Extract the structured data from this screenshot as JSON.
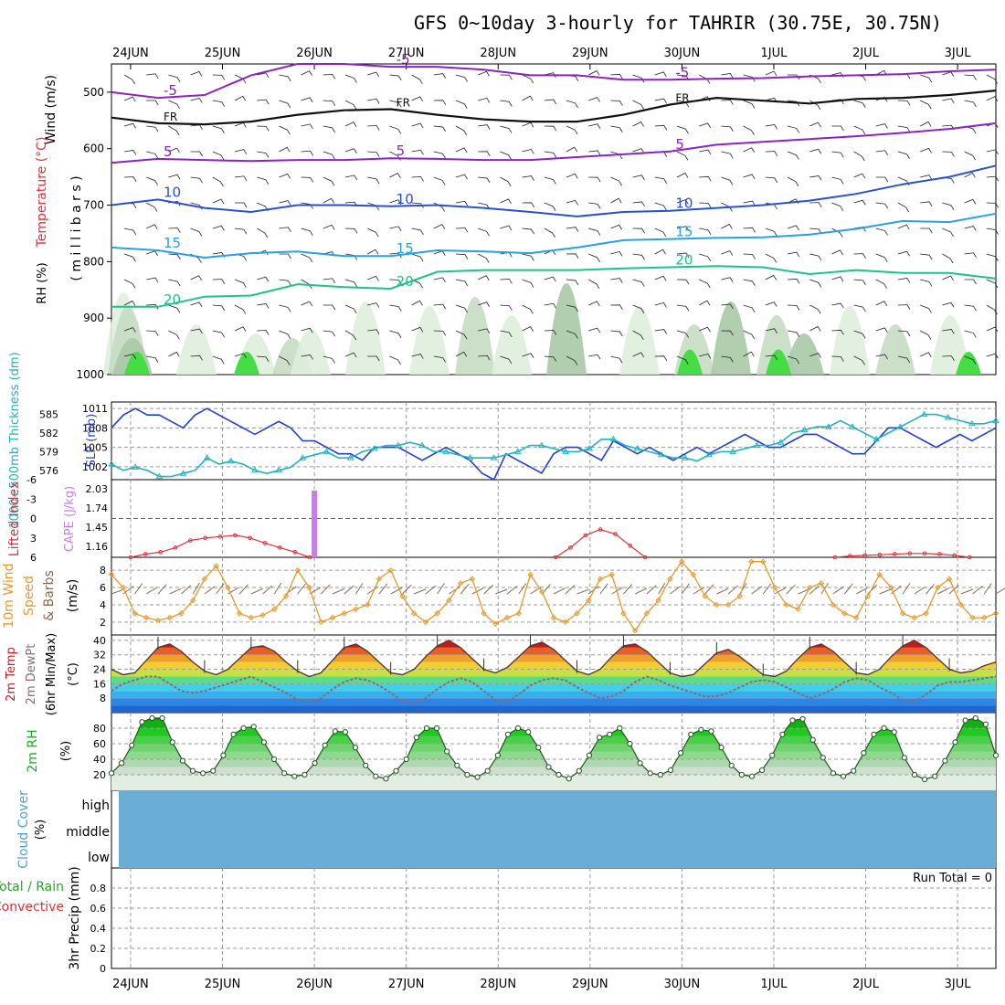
{
  "header": {
    "title": "GFS 0~10day 3-hourly for TAHRIR (30.75E, 30.75N)"
  },
  "dates": [
    "24JUN",
    "25JUN",
    "26JUN",
    "27JUN",
    "28JUN",
    "29JUN",
    "30JUN",
    "1JUL",
    "2JUL",
    "3JUL"
  ],
  "colors": {
    "rh_green": "#33cc33",
    "slp_blue": "#1f3fcf",
    "thick_cyan": "#1fb3c0",
    "lifted_red": "#e0303a",
    "cape_purple": "#c77cf0",
    "wind_orange": "#e8982a",
    "barb_brown": "#8b6a50",
    "temp_red": "#d41818",
    "dew_gray": "#8a6a7a",
    "cloud_blue": "#6aaed6",
    "rain_green": "#22aa22",
    "conv_red": "#e03030"
  },
  "chart_data": [
    {
      "id": "upper_air",
      "type": "contour",
      "ylabel_parts": [
        "Wind (m/s)",
        "Temperature (°C)",
        "RH (%)",
        "( m i l l i b a r s )"
      ],
      "y_ticks": [
        500,
        600,
        700,
        800,
        900,
        1000
      ],
      "ylim": [
        450,
        1000
      ],
      "isotherms": [
        {
          "label": "-5",
          "color": "#8a22c8",
          "values": [
            500,
            510,
            505,
            470,
            450,
            450,
            455,
            455,
            460,
            470,
            470,
            478,
            478,
            476,
            475,
            472,
            470,
            468,
            463,
            460
          ]
        },
        {
          "label": "FR",
          "color": "#111111",
          "values": [
            545,
            555,
            557,
            552,
            540,
            532,
            530,
            540,
            548,
            552,
            552,
            540,
            522,
            510,
            515,
            520,
            512,
            510,
            505,
            497
          ]
        },
        {
          "label": "5",
          "color": "#8a22c8",
          "values": [
            625,
            618,
            620,
            622,
            620,
            620,
            617,
            618,
            620,
            620,
            615,
            610,
            605,
            593,
            588,
            583,
            578,
            572,
            565,
            555
          ]
        },
        {
          "label": "10",
          "color": "#2a4fd0",
          "values": [
            700,
            690,
            705,
            712,
            700,
            700,
            702,
            700,
            705,
            712,
            720,
            712,
            710,
            705,
            700,
            692,
            680,
            663,
            650,
            630
          ]
        },
        {
          "label": "15",
          "color": "#2aa0e0",
          "values": [
            775,
            780,
            793,
            785,
            782,
            790,
            790,
            780,
            782,
            785,
            775,
            762,
            760,
            758,
            757,
            752,
            742,
            728,
            730,
            715
          ]
        },
        {
          "label": "20",
          "color": "#1fbf8f",
          "values": [
            880,
            880,
            862,
            860,
            840,
            845,
            848,
            818,
            815,
            815,
            815,
            812,
            810,
            808,
            810,
            822,
            815,
            820,
            820,
            830
          ]
        }
      ]
    },
    {
      "id": "pressure",
      "type": "line",
      "ylabel_left": "1000~500mb Thickness (dm)",
      "ylabel_right": "SLP (mb)",
      "left_ticks": [
        576,
        579,
        582,
        585
      ],
      "right_ticks": [
        1002,
        1005,
        1008,
        1011
      ],
      "ylim_slp": [
        1000,
        1012
      ],
      "ylim_thick": [
        574.5,
        587
      ],
      "series": [
        {
          "name": "SLP",
          "color": "#1f3fcf",
          "values": [
            1008,
            1010,
            1011,
            1010,
            1010,
            1009,
            1008,
            1010,
            1011,
            1010,
            1009,
            1008,
            1007,
            1008,
            1009,
            1008,
            1006,
            1006,
            1005,
            1004,
            1004,
            1003,
            1005,
            1005,
            1005,
            1004,
            1003,
            1004,
            1005,
            1004,
            1003,
            1001,
            1000,
            1004,
            1003,
            1002,
            1001,
            1004,
            1005,
            1005,
            1004,
            1003,
            1006,
            1005,
            1004,
            1005,
            1004,
            1003,
            1004,
            1005,
            1004,
            1005,
            1006,
            1007,
            1006,
            1005,
            1005,
            1006,
            1007,
            1007,
            1006,
            1005,
            1004,
            1004,
            1006,
            1008,
            1008,
            1007,
            1006,
            1005,
            1006,
            1007,
            1006,
            1007,
            1008
          ]
        },
        {
          "name": "Thickness",
          "color": "#1fb3c0",
          "values": [
            577,
            576,
            576.5,
            576,
            575,
            575,
            575.5,
            576,
            578,
            577,
            577.5,
            577,
            576,
            575.5,
            576,
            576.5,
            578,
            578.5,
            579,
            578,
            578,
            579,
            579.5,
            580,
            580,
            580.5,
            580,
            579,
            579,
            578.5,
            578,
            578,
            578,
            578.5,
            579,
            580,
            580,
            579.5,
            579,
            579,
            579.5,
            581,
            581,
            580,
            579.5,
            579,
            578.5,
            578,
            578,
            577.5,
            578.5,
            579,
            579,
            579.5,
            580,
            580,
            580.5,
            582,
            582.5,
            583,
            583,
            584,
            583,
            582,
            581,
            582,
            583,
            584,
            585,
            585,
            584.5,
            584,
            583.5,
            583.5,
            584
          ]
        }
      ]
    },
    {
      "id": "stability",
      "type": "line",
      "ylabel_left": "Lifted Index",
      "ylabel_right": "CAPE (J/kg)",
      "left_ticks": [
        "-6",
        "-3",
        "0",
        "3",
        "6"
      ],
      "right_ticks": [
        "1.16",
        "1.45",
        "1.74",
        "2.03"
      ],
      "ylim_li": [
        -6,
        6
      ],
      "cape_bar": {
        "value": 2.03
      },
      "lifted_index_segments": [
        {
          "values": [
            6,
            5.5,
            5.2,
            4.5,
            3.4,
            3.0,
            2.8,
            2.6,
            3.0,
            3.8,
            4.5,
            5.2,
            6
          ]
        },
        {
          "values": [
            6,
            4.5,
            2.6,
            1.7,
            2.4,
            4.2,
            6
          ]
        },
        {
          "values": [
            6,
            5.8,
            5.7,
            5.6,
            5.5,
            5.4,
            5.4,
            5.5,
            5.7,
            6
          ]
        }
      ]
    },
    {
      "id": "wind10m",
      "type": "line",
      "ylabel_parts": [
        "10m Wind",
        "Speed",
        "& Barbs",
        "(m/s)"
      ],
      "y_ticks": [
        2,
        4,
        6,
        8
      ],
      "ylim": [
        0.5,
        9.5
      ],
      "series": [
        {
          "name": "Speed",
          "color": "#e8982a",
          "values": [
            7.5,
            6,
            3,
            2.5,
            2.2,
            2.5,
            3,
            4.5,
            7,
            8.5,
            6,
            3,
            2.5,
            2.8,
            3.5,
            5,
            8,
            6,
            2,
            2.5,
            3,
            3.5,
            4,
            7,
            8,
            5,
            3,
            2,
            3,
            4.5,
            6.5,
            7,
            3,
            1.8,
            2.5,
            3,
            7.5,
            5.5,
            2.5,
            2,
            3,
            4.5,
            7,
            7.5,
            3,
            1,
            3,
            4.5,
            7,
            9,
            7.5,
            5,
            4,
            4,
            5,
            9,
            9,
            6,
            4,
            3.5,
            6,
            6.5,
            4,
            3,
            2.5,
            5,
            7.5,
            6,
            3,
            2.5,
            3,
            6,
            7,
            4,
            2.5,
            2.5,
            3
          ]
        }
      ]
    },
    {
      "id": "temp2m",
      "type": "area",
      "ylabel_parts": [
        "2m Temp",
        "2m DewPt",
        "(6hr Min/Max)",
        "(°C)"
      ],
      "y_ticks": [
        8,
        16,
        24,
        32,
        40
      ],
      "ylim": [
        0,
        43
      ],
      "series": [
        {
          "name": "Temperature",
          "color": "#5a3a2a",
          "values": [
            24,
            21,
            22,
            29,
            36,
            38,
            34,
            28,
            23,
            21,
            24,
            30,
            36,
            37,
            34,
            28,
            23,
            20,
            22,
            29,
            36,
            38,
            34,
            28,
            22,
            21,
            24,
            31,
            37,
            40,
            36,
            30,
            24,
            22,
            25,
            31,
            37,
            39,
            35,
            29,
            23,
            21,
            24,
            31,
            37,
            38,
            34,
            28,
            22,
            20,
            21,
            27,
            33,
            35,
            31,
            26,
            21,
            20,
            23,
            30,
            36,
            38,
            34,
            28,
            22,
            21,
            24,
            31,
            37,
            40,
            36,
            30,
            24,
            22,
            23,
            26,
            28
          ]
        },
        {
          "name": "DewPoint",
          "color": "#8a6a7a",
          "values": [
            12,
            16,
            18,
            20,
            20,
            16,
            12,
            11,
            12,
            14,
            16,
            18,
            20,
            17,
            14,
            11,
            7,
            6,
            8,
            13,
            17,
            19,
            18,
            15,
            11,
            6,
            5,
            8,
            13,
            17,
            19,
            17,
            12,
            7,
            6,
            10,
            15,
            18,
            19,
            18,
            14,
            11,
            8,
            9,
            12,
            17,
            20,
            18,
            15,
            13,
            11,
            9,
            9,
            11,
            14,
            17,
            18,
            17,
            14,
            11,
            8,
            10,
            13,
            17,
            19,
            18,
            14,
            11,
            7,
            6,
            10,
            15,
            17,
            17,
            18,
            19,
            20
          ]
        }
      ]
    },
    {
      "id": "rh2m",
      "type": "area",
      "ylabel_parts": [
        "2m RH",
        "(%)"
      ],
      "y_ticks": [
        20,
        40,
        60,
        80
      ],
      "ylim": [
        0,
        100
      ],
      "series": [
        {
          "name": "RH",
          "color": "#22bb22",
          "values": [
            22,
            35,
            58,
            88,
            93,
            93,
            62,
            38,
            25,
            22,
            25,
            45,
            72,
            80,
            82,
            62,
            40,
            22,
            18,
            20,
            35,
            58,
            76,
            75,
            55,
            32,
            18,
            15,
            25,
            40,
            68,
            80,
            80,
            50,
            32,
            20,
            17,
            25,
            45,
            72,
            80,
            75,
            55,
            30,
            20,
            15,
            25,
            45,
            68,
            72,
            80,
            60,
            35,
            22,
            20,
            26,
            48,
            72,
            78,
            76,
            55,
            32,
            20,
            18,
            26,
            45,
            72,
            90,
            92,
            65,
            42,
            22,
            18,
            25,
            48,
            72,
            80,
            75,
            42,
            20,
            14,
            18,
            38,
            62,
            90,
            93,
            85,
            45
          ]
        }
      ]
    },
    {
      "id": "cloud",
      "type": "heatmap",
      "ylabel": "Cloud Cover (%)",
      "levels": [
        "high",
        "middle",
        "low"
      ]
    },
    {
      "id": "precip",
      "type": "bar",
      "ylabel": "3hr Precip (mm)",
      "legend": [
        "Total / Rain",
        "Convective"
      ],
      "y_ticks": [
        "0",
        "0.2",
        "0.4",
        "0.6",
        "0.8"
      ],
      "ylim": [
        0,
        1.0
      ],
      "run_total": "Run Total = 0"
    }
  ]
}
